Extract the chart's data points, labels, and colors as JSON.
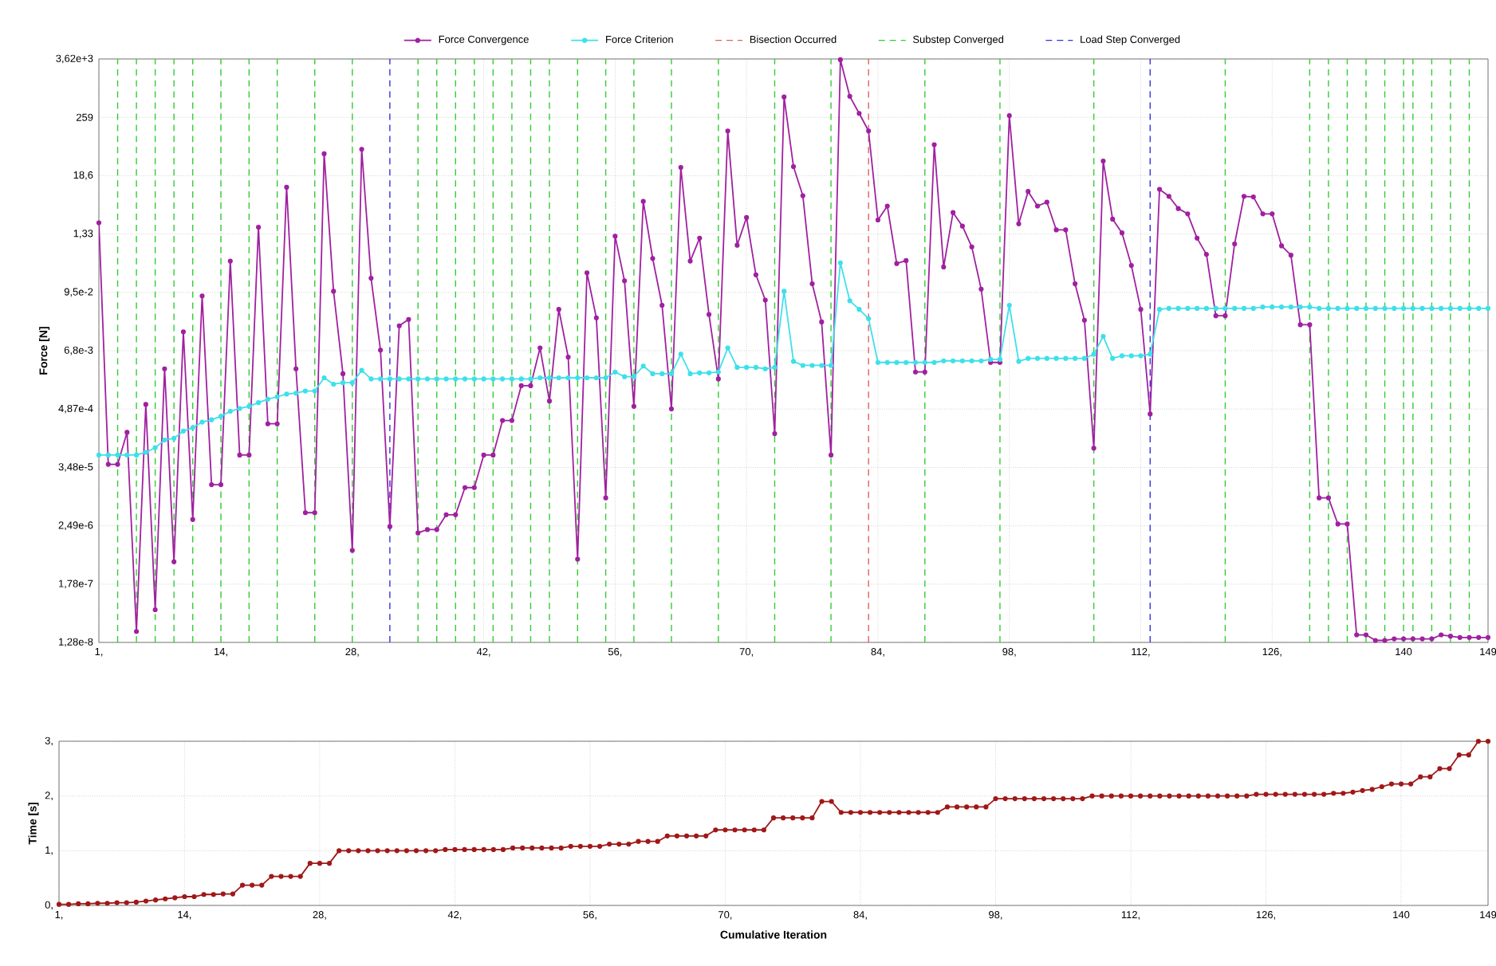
{
  "chart_data": [
    {
      "type": "line",
      "ylabel": "Force [N]",
      "log": "y",
      "grid": true,
      "legend": "top",
      "marker": "circle",
      "xlim": [
        1,
        149
      ],
      "ylim": [
        1.28e-08,
        3620.0
      ],
      "xticks": [
        {
          "value": 1,
          "label": "1,"
        },
        {
          "value": 14,
          "label": "14,"
        },
        {
          "value": 28,
          "label": "28,"
        },
        {
          "value": 42,
          "label": "42,"
        },
        {
          "value": 56,
          "label": "56,"
        },
        {
          "value": 70,
          "label": "70,"
        },
        {
          "value": 84,
          "label": "84,"
        },
        {
          "value": 98,
          "label": "98,"
        },
        {
          "value": 112,
          "label": "112,"
        },
        {
          "value": 126,
          "label": "126,"
        },
        {
          "value": 140,
          "label": "140"
        },
        {
          "value": 149,
          "label": "149"
        }
      ],
      "yticks": [
        {
          "value": 1.28e-08,
          "label": "1,28e-8"
        },
        {
          "value": 1.78e-07,
          "label": "1,78e-7"
        },
        {
          "value": 2.49e-06,
          "label": "2,49e-6"
        },
        {
          "value": 3.48e-05,
          "label": "3,48e-5"
        },
        {
          "value": 0.000487,
          "label": "4,87e-4"
        },
        {
          "value": 0.0068,
          "label": "6,8e-3"
        },
        {
          "value": 0.095,
          "label": "9,5e-2"
        },
        {
          "value": 1.33,
          "label": "1,33"
        },
        {
          "value": 18.6,
          "label": "18,6"
        },
        {
          "value": 259,
          "label": "259"
        },
        {
          "value": 3620,
          "label": "3,62e+3"
        }
      ],
      "x": [
        1,
        2,
        3,
        4,
        5,
        6,
        7,
        8,
        9,
        10,
        11,
        12,
        13,
        14,
        15,
        16,
        17,
        18,
        19,
        20,
        21,
        22,
        23,
        24,
        25,
        26,
        27,
        28,
        29,
        30,
        31,
        32,
        33,
        34,
        35,
        36,
        37,
        38,
        39,
        40,
        41,
        42,
        43,
        44,
        45,
        46,
        47,
        48,
        49,
        50,
        51,
        52,
        53,
        54,
        55,
        56,
        57,
        58,
        59,
        60,
        61,
        62,
        63,
        64,
        65,
        66,
        67,
        68,
        69,
        70,
        71,
        72,
        73,
        74,
        75,
        76,
        77,
        78,
        79,
        80,
        81,
        82,
        83,
        84,
        85,
        86,
        87,
        88,
        89,
        90,
        91,
        92,
        93,
        94,
        95,
        96,
        97,
        98,
        99,
        100,
        101,
        102,
        103,
        104,
        105,
        106,
        107,
        108,
        109,
        110,
        111,
        112,
        113,
        114,
        115,
        116,
        117,
        118,
        119,
        120,
        121,
        122,
        123,
        124,
        125,
        126,
        127,
        128,
        129,
        130,
        131,
        132,
        133,
        134,
        135,
        136,
        137,
        138,
        139,
        140,
        141,
        142,
        143,
        144,
        145,
        146,
        147,
        148,
        149
      ],
      "series": [
        {
          "name": "Force Convergence",
          "color": "#a020a0",
          "values": [
            2.2,
            4e-05,
            4e-05,
            0.00017,
            2.1e-08,
            0.0006,
            5.6e-08,
            0.003,
            4.9e-07,
            0.016,
            3.3e-06,
            0.081,
            1.6e-05,
            1.6e-05,
            0.39,
            6.1e-05,
            6.1e-05,
            1.8,
            0.00025,
            0.00025,
            11,
            0.003,
            4.5e-06,
            4.5e-06,
            50,
            0.1,
            0.0024,
            8.2e-07,
            61,
            0.18,
            0.007,
            2.4e-06,
            0.021,
            0.028,
            1.8e-06,
            2.1e-06,
            2.1e-06,
            4.1e-06,
            4.1e-06,
            1.4e-05,
            1.4e-05,
            6.1e-05,
            6.1e-05,
            0.00029,
            0.00029,
            0.0014,
            0.0014,
            0.0077,
            0.0007,
            0.044,
            0.0051,
            5.5e-07,
            0.23,
            0.03,
            8.8e-06,
            1.2,
            0.16,
            0.00055,
            5.8,
            0.44,
            0.053,
            0.00049,
            27,
            0.39,
            1.1,
            0.035,
            0.0019,
            140,
            0.8,
            2.8,
            0.21,
            0.067,
            0.00016,
            650,
            28,
            7.5,
            0.14,
            0.025,
            6.1e-05,
            3500,
            670,
            310,
            140,
            2.5,
            4.7,
            0.35,
            0.4,
            0.0026,
            0.0026,
            75,
            0.3,
            3.5,
            1.9,
            0.74,
            0.11,
            0.004,
            0.004,
            280,
            2.1,
            9.1,
            4.7,
            5.6,
            1.6,
            1.6,
            0.14,
            0.027,
            8.3e-05,
            36,
            2.6,
            1.4,
            0.32,
            0.044,
            0.00039,
            10,
            7.3,
            4.2,
            3.3,
            1.1,
            0.53,
            0.033,
            0.033,
            0.85,
            7.3,
            7.1,
            3.3,
            3.3,
            0.78,
            0.51,
            0.022,
            0.022,
            8.8e-06,
            8.8e-06,
            2.7e-06,
            2.7e-06,
            1.8e-08,
            1.8e-08,
            1.4e-08,
            1.4e-08,
            1.5e-08,
            1.5e-08,
            1.5e-08,
            1.5e-08,
            1.5e-08,
            1.8e-08,
            1.7e-08,
            1.6e-08,
            1.6e-08,
            1.6e-08,
            1.6e-08
          ]
        },
        {
          "name": "Force Criterion",
          "color": "#3ee0ea",
          "values": [
            6.1e-05,
            6.1e-05,
            6.1e-05,
            6.1e-05,
            6.1e-05,
            6.9e-05,
            8.5e-05,
            0.00012,
            0.00013,
            0.00018,
            0.00021,
            0.00027,
            0.0003,
            0.00035,
            0.00044,
            0.0005,
            0.00055,
            0.00065,
            0.00076,
            0.00085,
            0.00096,
            0.001,
            0.0011,
            0.0011,
            0.002,
            0.0015,
            0.0016,
            0.0016,
            0.0028,
            0.0019,
            0.0019,
            0.0019,
            0.0019,
            0.0019,
            0.0019,
            0.0019,
            0.0019,
            0.0019,
            0.0019,
            0.0019,
            0.0019,
            0.0019,
            0.0019,
            0.0019,
            0.0019,
            0.0019,
            0.0019,
            0.002,
            0.002,
            0.002,
            0.002,
            0.002,
            0.002,
            0.002,
            0.002,
            0.0026,
            0.0021,
            0.0021,
            0.0034,
            0.0024,
            0.0024,
            0.0024,
            0.0058,
            0.0024,
            0.0025,
            0.0025,
            0.0026,
            0.0077,
            0.0032,
            0.0032,
            0.0032,
            0.003,
            0.0032,
            0.1,
            0.0042,
            0.0035,
            0.0035,
            0.0035,
            0.0035,
            0.36,
            0.065,
            0.044,
            0.029,
            0.004,
            0.004,
            0.004,
            0.004,
            0.004,
            0.004,
            0.004,
            0.0043,
            0.0043,
            0.0043,
            0.0043,
            0.0043,
            0.0046,
            0.0046,
            0.053,
            0.0042,
            0.0048,
            0.0048,
            0.0048,
            0.0048,
            0.0048,
            0.0048,
            0.0048,
            0.0058,
            0.013,
            0.0048,
            0.0054,
            0.0054,
            0.0054,
            0.0058,
            0.044,
            0.046,
            0.046,
            0.046,
            0.046,
            0.046,
            0.046,
            0.046,
            0.046,
            0.046,
            0.046,
            0.049,
            0.049,
            0.049,
            0.049,
            0.049,
            0.049,
            0.046,
            0.046,
            0.046,
            0.046,
            0.046,
            0.046,
            0.046,
            0.046,
            0.046,
            0.046,
            0.046,
            0.046,
            0.046,
            0.046,
            0.046,
            0.046,
            0.046,
            0.046,
            0.046
          ]
        }
      ],
      "ref_lines": [
        {
          "axis": "x",
          "value": 83,
          "label": "Bisection Occurred",
          "color": "#e06060",
          "line_style": "dashed"
        },
        {
          "axis": "x",
          "value": 3,
          "label": "Substep Converged",
          "color": "#33cc33",
          "line_style": "dashed"
        },
        {
          "axis": "x",
          "value": 5,
          "color": "#33cc33",
          "line_style": "dashed"
        },
        {
          "axis": "x",
          "value": 7,
          "color": "#33cc33",
          "line_style": "dashed"
        },
        {
          "axis": "x",
          "value": 9,
          "color": "#33cc33",
          "line_style": "dashed"
        },
        {
          "axis": "x",
          "value": 11,
          "color": "#33cc33",
          "line_style": "dashed"
        },
        {
          "axis": "x",
          "value": 14,
          "color": "#33cc33",
          "line_style": "dashed"
        },
        {
          "axis": "x",
          "value": 17,
          "color": "#33cc33",
          "line_style": "dashed"
        },
        {
          "axis": "x",
          "value": 20,
          "color": "#33cc33",
          "line_style": "dashed"
        },
        {
          "axis": "x",
          "value": 24,
          "color": "#33cc33",
          "line_style": "dashed"
        },
        {
          "axis": "x",
          "value": 28,
          "color": "#33cc33",
          "line_style": "dashed"
        },
        {
          "axis": "x",
          "value": 35,
          "color": "#33cc33",
          "line_style": "dashed"
        },
        {
          "axis": "x",
          "value": 37,
          "color": "#33cc33",
          "line_style": "dashed"
        },
        {
          "axis": "x",
          "value": 39,
          "color": "#33cc33",
          "line_style": "dashed"
        },
        {
          "axis": "x",
          "value": 41,
          "color": "#33cc33",
          "line_style": "dashed"
        },
        {
          "axis": "x",
          "value": 43,
          "color": "#33cc33",
          "line_style": "dashed"
        },
        {
          "axis": "x",
          "value": 45,
          "color": "#33cc33",
          "line_style": "dashed"
        },
        {
          "axis": "x",
          "value": 47,
          "color": "#33cc33",
          "line_style": "dashed"
        },
        {
          "axis": "x",
          "value": 49,
          "color": "#33cc33",
          "line_style": "dashed"
        },
        {
          "axis": "x",
          "value": 52,
          "color": "#33cc33",
          "line_style": "dashed"
        },
        {
          "axis": "x",
          "value": 55,
          "color": "#33cc33",
          "line_style": "dashed"
        },
        {
          "axis": "x",
          "value": 58,
          "color": "#33cc33",
          "line_style": "dashed"
        },
        {
          "axis": "x",
          "value": 62,
          "color": "#33cc33",
          "line_style": "dashed"
        },
        {
          "axis": "x",
          "value": 67,
          "color": "#33cc33",
          "line_style": "dashed"
        },
        {
          "axis": "x",
          "value": 73,
          "color": "#33cc33",
          "line_style": "dashed"
        },
        {
          "axis": "x",
          "value": 79,
          "color": "#33cc33",
          "line_style": "dashed"
        },
        {
          "axis": "x",
          "value": 89,
          "color": "#33cc33",
          "line_style": "dashed"
        },
        {
          "axis": "x",
          "value": 97,
          "color": "#33cc33",
          "line_style": "dashed"
        },
        {
          "axis": "x",
          "value": 107,
          "color": "#33cc33",
          "line_style": "dashed"
        },
        {
          "axis": "x",
          "value": 121,
          "color": "#33cc33",
          "line_style": "dashed"
        },
        {
          "axis": "x",
          "value": 130,
          "color": "#33cc33",
          "line_style": "dashed"
        },
        {
          "axis": "x",
          "value": 132,
          "color": "#33cc33",
          "line_style": "dashed"
        },
        {
          "axis": "x",
          "value": 134,
          "color": "#33cc33",
          "line_style": "dashed"
        },
        {
          "axis": "x",
          "value": 136,
          "color": "#33cc33",
          "line_style": "dashed"
        },
        {
          "axis": "x",
          "value": 138,
          "color": "#33cc33",
          "line_style": "dashed"
        },
        {
          "axis": "x",
          "value": 140,
          "color": "#33cc33",
          "line_style": "dashed"
        },
        {
          "axis": "x",
          "value": 141,
          "color": "#33cc33",
          "line_style": "dashed"
        },
        {
          "axis": "x",
          "value": 143,
          "color": "#33cc33",
          "line_style": "dashed"
        },
        {
          "axis": "x",
          "value": 145,
          "color": "#33cc33",
          "line_style": "dashed"
        },
        {
          "axis": "x",
          "value": 147,
          "color": "#33cc33",
          "line_style": "dashed"
        },
        {
          "axis": "x",
          "value": 32,
          "label": "Load Step Converged",
          "color": "#3333dd",
          "line_style": "dashed"
        },
        {
          "axis": "x",
          "value": 113,
          "color": "#3333dd",
          "line_style": "dashed"
        }
      ]
    },
    {
      "type": "line",
      "ylabel": "Time [s]",
      "xlabel": "Cumulative Iteration",
      "grid": true,
      "marker": "circle",
      "xlim": [
        1,
        149
      ],
      "ylim": [
        0,
        3
      ],
      "xticks": [
        {
          "value": 1,
          "label": "1,"
        },
        {
          "value": 14,
          "label": "14,"
        },
        {
          "value": 28,
          "label": "28,"
        },
        {
          "value": 42,
          "label": "42,"
        },
        {
          "value": 56,
          "label": "56,"
        },
        {
          "value": 70,
          "label": "70,"
        },
        {
          "value": 84,
          "label": "84,"
        },
        {
          "value": 98,
          "label": "98,"
        },
        {
          "value": 112,
          "label": "112,"
        },
        {
          "value": 126,
          "label": "126,"
        },
        {
          "value": 140,
          "label": "140"
        },
        {
          "value": 149,
          "label": "149"
        }
      ],
      "yticks": [
        {
          "value": 0,
          "label": "0,"
        },
        {
          "value": 1,
          "label": "1,"
        },
        {
          "value": 2,
          "label": "2,"
        },
        {
          "value": 3,
          "label": "3,"
        }
      ],
      "x": [
        1,
        2,
        3,
        4,
        5,
        6,
        7,
        8,
        9,
        10,
        11,
        12,
        13,
        14,
        15,
        16,
        17,
        18,
        19,
        20,
        21,
        22,
        23,
        24,
        25,
        26,
        27,
        28,
        29,
        30,
        31,
        32,
        33,
        34,
        35,
        36,
        37,
        38,
        39,
        40,
        41,
        42,
        43,
        44,
        45,
        46,
        47,
        48,
        49,
        50,
        51,
        52,
        53,
        54,
        55,
        56,
        57,
        58,
        59,
        60,
        61,
        62,
        63,
        64,
        65,
        66,
        67,
        68,
        69,
        70,
        71,
        72,
        73,
        74,
        75,
        76,
        77,
        78,
        79,
        80,
        81,
        82,
        83,
        84,
        85,
        86,
        87,
        88,
        89,
        90,
        91,
        92,
        93,
        94,
        95,
        96,
        97,
        98,
        99,
        100,
        101,
        102,
        103,
        104,
        105,
        106,
        107,
        108,
        109,
        110,
        111,
        112,
        113,
        114,
        115,
        116,
        117,
        118,
        119,
        120,
        121,
        122,
        123,
        124,
        125,
        126,
        127,
        128,
        129,
        130,
        131,
        132,
        133,
        134,
        135,
        136,
        137,
        138,
        139,
        140,
        141,
        142,
        143,
        144,
        145,
        146,
        147,
        148,
        149
      ],
      "series": [
        {
          "color": "#a01818",
          "values": [
            0.02,
            0.02,
            0.03,
            0.03,
            0.04,
            0.04,
            0.05,
            0.05,
            0.06,
            0.08,
            0.1,
            0.12,
            0.14,
            0.16,
            0.16,
            0.2,
            0.2,
            0.21,
            0.21,
            0.37,
            0.37,
            0.37,
            0.53,
            0.53,
            0.53,
            0.53,
            0.77,
            0.77,
            0.77,
            1.0,
            1.0,
            1.0,
            1.0,
            1.0,
            1.0,
            1.0,
            1.0,
            1.0,
            1.0,
            1.0,
            1.02,
            1.02,
            1.02,
            1.02,
            1.02,
            1.02,
            1.02,
            1.05,
            1.05,
            1.05,
            1.05,
            1.05,
            1.05,
            1.08,
            1.08,
            1.08,
            1.08,
            1.12,
            1.12,
            1.12,
            1.17,
            1.17,
            1.17,
            1.27,
            1.27,
            1.27,
            1.27,
            1.27,
            1.38,
            1.38,
            1.38,
            1.38,
            1.38,
            1.38,
            1.6,
            1.6,
            1.6,
            1.6,
            1.6,
            1.9,
            1.9,
            1.7,
            1.7,
            1.7,
            1.7,
            1.7,
            1.7,
            1.7,
            1.7,
            1.7,
            1.7,
            1.7,
            1.8,
            1.8,
            1.8,
            1.8,
            1.8,
            1.95,
            1.95,
            1.95,
            1.95,
            1.95,
            1.95,
            1.95,
            1.95,
            1.95,
            1.95,
            2.0,
            2.0,
            2.0,
            2.0,
            2.0,
            2.0,
            2.0,
            2.0,
            2.0,
            2.0,
            2.0,
            2.0,
            2.0,
            2.0,
            2.0,
            2.0,
            2.0,
            2.03,
            2.03,
            2.03,
            2.03,
            2.03,
            2.03,
            2.03,
            2.03,
            2.05,
            2.05,
            2.07,
            2.1,
            2.12,
            2.17,
            2.22,
            2.22,
            2.22,
            2.35,
            2.35,
            2.5,
            2.5,
            2.75,
            2.75,
            3.0,
            3.0
          ]
        }
      ]
    }
  ]
}
